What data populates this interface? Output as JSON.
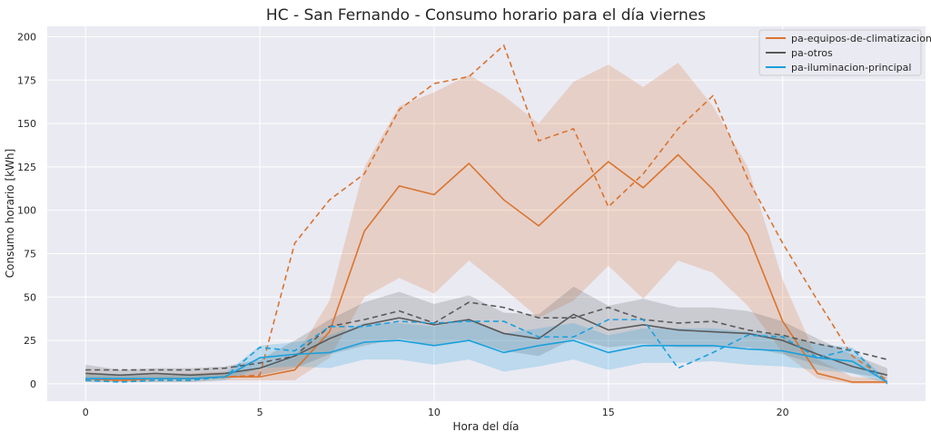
{
  "chart_data": {
    "type": "line",
    "title": "HC - San Fernando - Consumo horario para el día viernes",
    "xlabel": "Hora del día",
    "ylabel": "Consumo horario [kWh]",
    "xlim": [
      -1.1,
      24.1
    ],
    "ylim": [
      -10,
      206
    ],
    "x_ticks": [
      0,
      5,
      10,
      15,
      20
    ],
    "y_ticks": [
      0,
      25,
      50,
      75,
      100,
      125,
      150,
      175,
      200
    ],
    "grid": true,
    "legend_position": "top-right",
    "x": [
      0,
      1,
      2,
      3,
      4,
      5,
      6,
      7,
      8,
      9,
      10,
      11,
      12,
      13,
      14,
      15,
      16,
      17,
      18,
      19,
      20,
      21,
      22,
      23
    ],
    "series": [
      {
        "name": "pa-equipos-de-climatizacion",
        "color": "#d9742f",
        "mean": [
          3,
          2,
          3,
          3,
          4,
          4,
          8,
          30,
          88,
          114,
          109,
          127,
          106,
          91,
          110,
          128,
          113,
          132,
          112,
          86,
          36,
          6,
          1,
          1
        ],
        "lower": [
          1,
          1,
          1,
          1,
          2,
          2,
          2,
          15,
          50,
          61,
          52,
          71,
          55,
          38,
          48,
          68,
          49,
          71,
          64,
          45,
          18,
          3,
          0,
          0
        ],
        "upper": [
          7,
          5,
          6,
          6,
          7,
          8,
          15,
          48,
          125,
          160,
          168,
          178,
          166,
          150,
          174,
          184,
          171,
          185,
          160,
          125,
          60,
          14,
          4,
          3
        ],
        "reference": [
          2,
          2,
          2,
          2,
          4,
          5,
          81,
          106,
          121,
          158,
          173,
          177,
          195,
          140,
          147,
          102,
          121,
          147,
          166,
          118,
          81,
          48,
          16,
          2
        ]
      },
      {
        "name": "pa-otros",
        "color": "#5a5a5a",
        "mean": [
          6,
          5,
          6,
          5,
          6,
          9,
          16,
          26,
          34,
          38,
          34,
          37,
          29,
          26,
          40,
          31,
          34,
          31,
          30,
          29,
          25,
          17,
          10,
          5
        ],
        "lower": [
          3,
          3,
          3,
          3,
          3,
          5,
          9,
          17,
          22,
          26,
          22,
          25,
          19,
          16,
          26,
          21,
          23,
          21,
          21,
          21,
          17,
          11,
          6,
          3
        ],
        "upper": [
          11,
          8,
          9,
          9,
          10,
          14,
          25,
          37,
          47,
          53,
          46,
          51,
          41,
          40,
          56,
          45,
          49,
          44,
          44,
          42,
          36,
          26,
          17,
          9
        ],
        "reference": [
          8,
          8,
          8,
          8,
          9,
          12,
          16,
          33,
          37,
          42,
          35,
          47,
          44,
          38,
          38,
          44,
          37,
          35,
          36,
          31,
          28,
          23,
          19,
          14
        ]
      },
      {
        "name": "pa-iluminacion-principal",
        "color": "#1aa0dc",
        "mean": [
          3,
          3,
          3,
          3,
          4,
          15,
          17,
          18,
          24,
          25,
          22,
          25,
          18,
          22,
          25,
          18,
          22,
          22,
          22,
          20,
          19,
          15,
          13,
          1
        ],
        "lower": [
          1,
          1,
          1,
          1,
          2,
          9,
          10,
          9,
          14,
          14,
          11,
          14,
          7,
          10,
          14,
          8,
          12,
          12,
          13,
          11,
          10,
          8,
          6,
          0
        ],
        "upper": [
          5,
          5,
          5,
          5,
          6,
          22,
          24,
          28,
          35,
          35,
          33,
          37,
          29,
          32,
          35,
          28,
          32,
          32,
          32,
          30,
          28,
          23,
          21,
          2
        ],
        "reference": [
          2,
          1,
          2,
          2,
          4,
          21,
          19,
          33,
          33,
          36,
          35,
          36,
          36,
          27,
          27,
          37,
          37,
          9,
          18,
          28,
          27,
          15,
          20,
          0
        ]
      }
    ]
  }
}
